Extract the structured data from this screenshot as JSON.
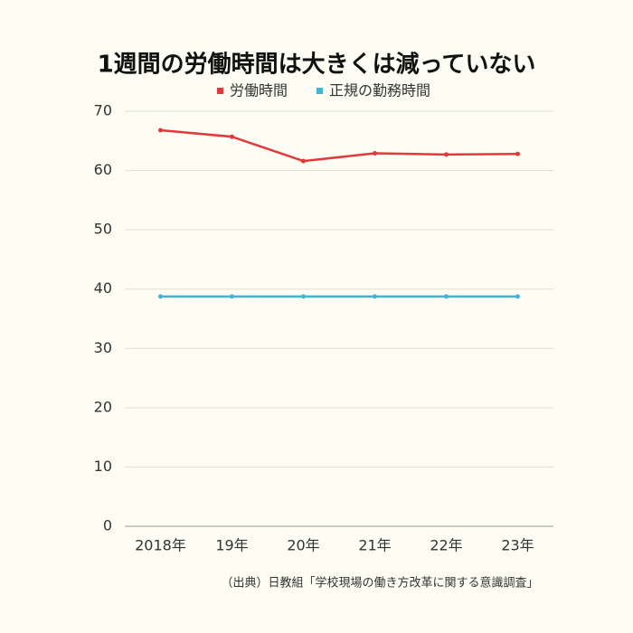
{
  "chart_data": {
    "type": "line",
    "title": "1週間の労働時間は大きくは減っていない",
    "categories": [
      "2018年",
      "19年",
      "20年",
      "21年",
      "22年",
      "23年"
    ],
    "series": [
      {
        "name": "労働時間",
        "color": "#e03a3e",
        "values": [
          66.8,
          65.7,
          61.6,
          62.9,
          62.7,
          62.8
        ]
      },
      {
        "name": "正規の勤務時間",
        "color": "#45b2d8",
        "values": [
          38.75,
          38.75,
          38.75,
          38.75,
          38.75,
          38.75
        ]
      }
    ],
    "ylim": [
      0,
      70
    ],
    "yticks": [
      0,
      10,
      20,
      30,
      40,
      50,
      60,
      70
    ],
    "grid": true,
    "source": "（出典）日教組「学校現場の働き方改革に関する意識調査」"
  }
}
